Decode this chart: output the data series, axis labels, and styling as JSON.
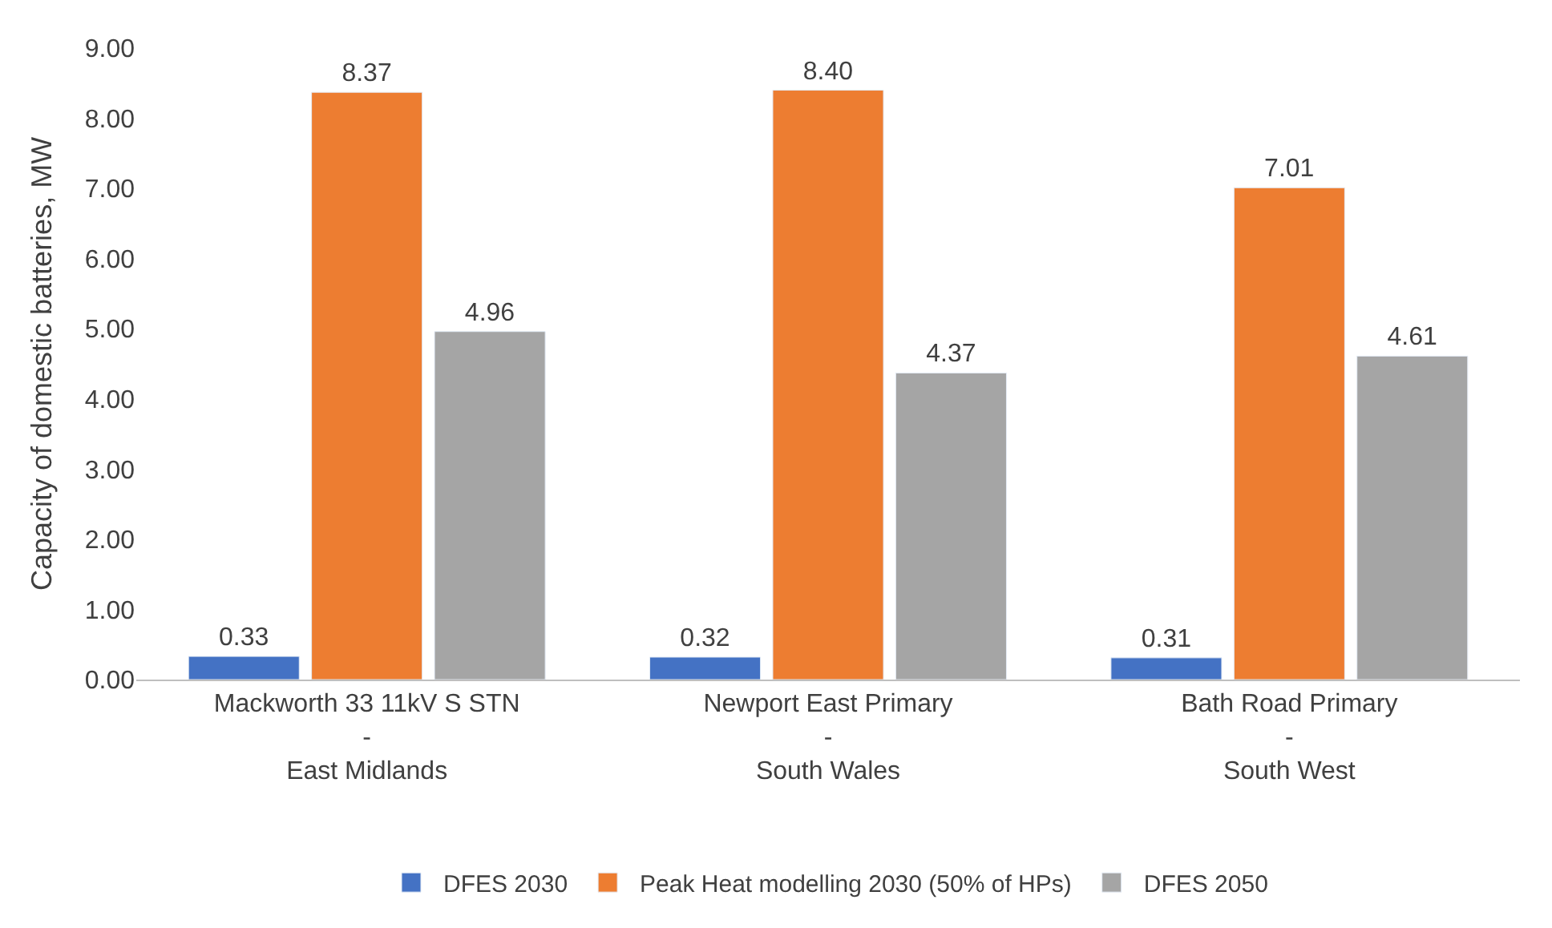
{
  "chart_data": {
    "type": "bar",
    "ylabel": "Capacity of domestic batteries, MW",
    "categories": [
      "Mackworth 33 11kV S STN\n-\nEast Midlands",
      "Newport East Primary\n-\nSouth Wales",
      "Bath Road Primary\n-\nSouth West"
    ],
    "series": [
      {
        "name": "DFES 2030",
        "color": "#4472c4",
        "values": [
          0.33,
          0.32,
          0.31
        ],
        "value_labels": [
          "0.33",
          "0.32",
          "0.31"
        ]
      },
      {
        "name": "Peak Heat modelling 2030 (50% of HPs)",
        "color": "#ed7d31",
        "values": [
          8.37,
          8.4,
          7.01
        ],
        "value_labels": [
          "8.37",
          "8.40",
          "7.01"
        ]
      },
      {
        "name": "DFES 2050",
        "color": "#a5a5a5",
        "values": [
          4.96,
          4.37,
          4.61
        ],
        "value_labels": [
          "4.96",
          "4.37",
          "4.61"
        ]
      }
    ],
    "ylim": [
      0,
      9
    ],
    "yticks": [
      {
        "value": 0,
        "label": "0.00"
      },
      {
        "value": 1,
        "label": "1.00"
      },
      {
        "value": 2,
        "label": "2.00"
      },
      {
        "value": 3,
        "label": "3.00"
      },
      {
        "value": 4,
        "label": "4.00"
      },
      {
        "value": 5,
        "label": "5.00"
      },
      {
        "value": 6,
        "label": "6.00"
      },
      {
        "value": 7,
        "label": "7.00"
      },
      {
        "value": 8,
        "label": "8.00"
      },
      {
        "value": 9,
        "label": "9.00"
      }
    ],
    "legend": "bottom"
  }
}
